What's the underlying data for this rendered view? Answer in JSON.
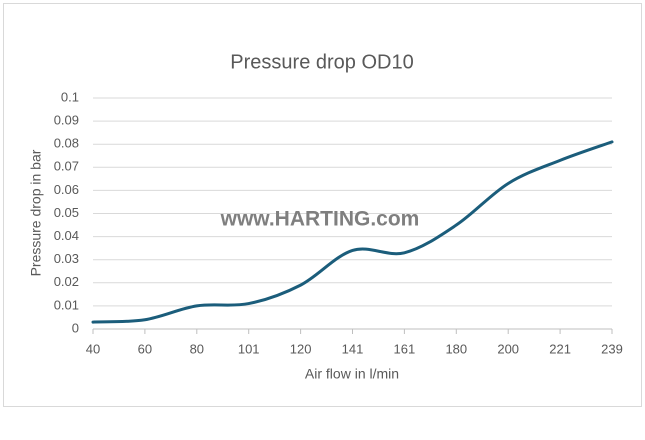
{
  "chart_data": {
    "type": "line",
    "title": "Pressure drop OD10",
    "x_label": "Air flow in l/min",
    "y_label": "Pressure drop in bar",
    "watermark": "www.HARTING.com",
    "categories": [
      "40",
      "60",
      "80",
      "101",
      "120",
      "141",
      "161",
      "180",
      "200",
      "221",
      "239"
    ],
    "values": [
      0.003,
      0.004,
      0.01,
      0.011,
      0.019,
      0.034,
      0.033,
      0.045,
      0.063,
      0.073,
      0.081
    ],
    "color": "#1b5d7b",
    "smooth": true,
    "ylim": [
      0,
      0.1
    ],
    "yticks": [
      0,
      0.01,
      0.02,
      0.03,
      0.04,
      0.05,
      0.06,
      0.07,
      0.08,
      0.09,
      0.1
    ],
    "grid": true
  }
}
